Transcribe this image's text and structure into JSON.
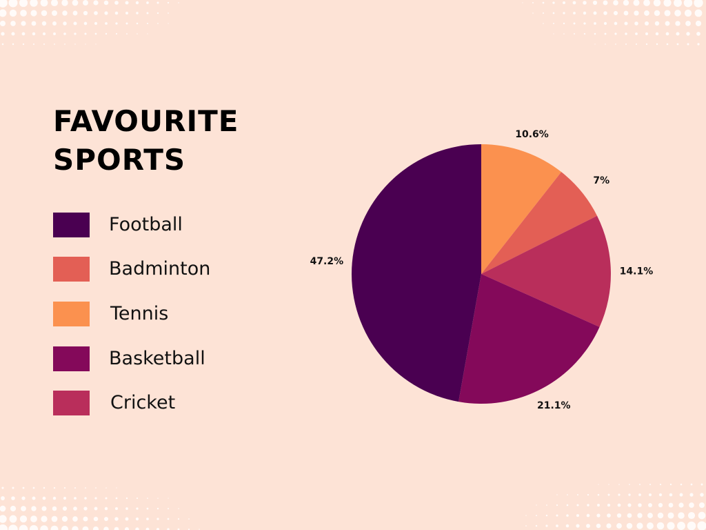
{
  "title": "FAVOURITE SPORTS",
  "chart_data": {
    "type": "pie",
    "title": "FAVOURITE SPORTS",
    "categories": [
      "Football",
      "Badminton",
      "Tennis",
      "Basketball",
      "Cricket"
    ],
    "slices": [
      {
        "name": "Tennis",
        "value": 10.6,
        "label": "10.6%",
        "color": "#fb914f"
      },
      {
        "name": "Badminton",
        "value": 7,
        "label": "7%",
        "color": "#e35f55"
      },
      {
        "name": "Cricket",
        "value": 14.1,
        "label": "14.1%",
        "color": "#b92e5b"
      },
      {
        "name": "Basketball",
        "value": 21.1,
        "label": "21.1%",
        "color": "#84095a"
      },
      {
        "name": "Football",
        "value": 47.2,
        "label": "47.2%",
        "color": "#4a0051"
      }
    ],
    "legend": [
      {
        "name": "Football",
        "color": "#4a0051"
      },
      {
        "name": "Badminton",
        "color": "#e35f55"
      },
      {
        "name": "Tennis",
        "color": "#fb914f"
      },
      {
        "name": "Basketball",
        "color": "#84095a"
      },
      {
        "name": "Cricket",
        "color": "#b92e5b"
      }
    ],
    "legend_position": "left",
    "start_angle": "12 o'clock",
    "direction": "clockwise"
  },
  "background_color": "#fde3d6"
}
